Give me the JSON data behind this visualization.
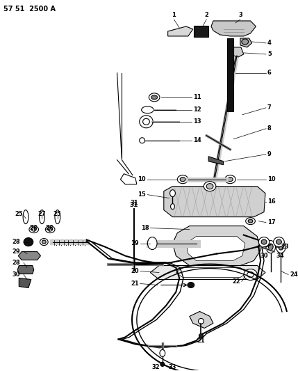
{
  "bg_color": "#ffffff",
  "line_color": "#000000",
  "fig_width": 4.29,
  "fig_height": 5.33,
  "dpi": 100,
  "title": "57 51  2500 A"
}
